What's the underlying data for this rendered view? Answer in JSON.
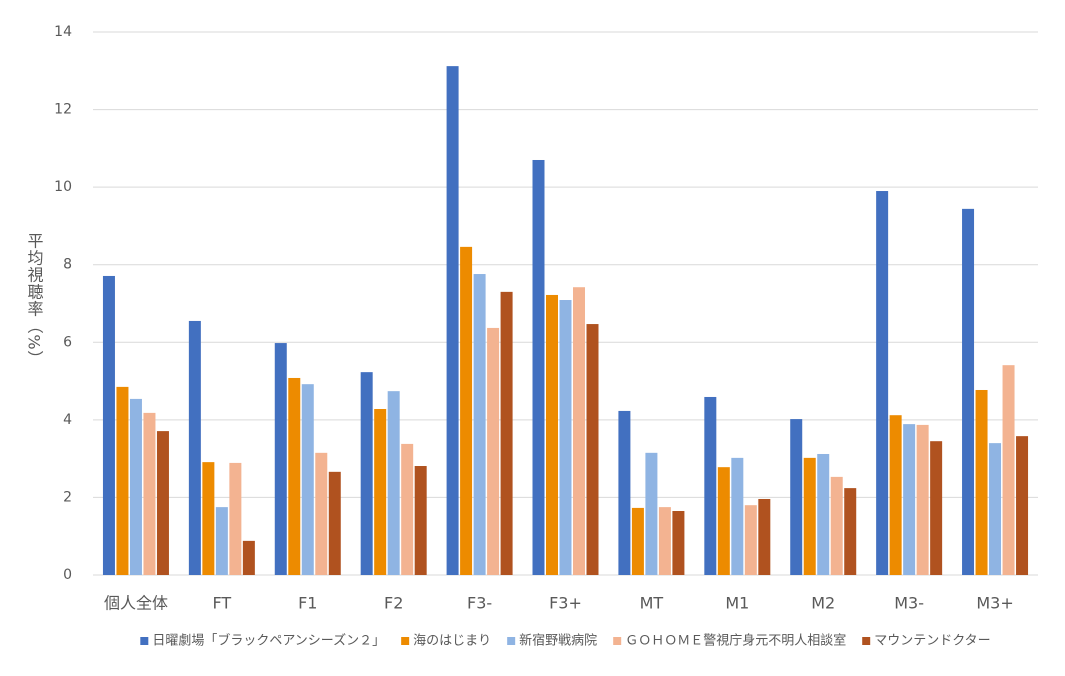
{
  "chart_data": {
    "type": "bar",
    "ylabel": "平均視聴率（%）",
    "categories": [
      "個人全体",
      "FT",
      "F1",
      "F2",
      "F3-",
      "F3+",
      "MT",
      "M1",
      "M2",
      "M3-",
      "M3+"
    ],
    "series": [
      {
        "name": "日曜劇場「ブラックペアンシーズン２」",
        "color": "#4270c0",
        "values": [
          7.71,
          6.55,
          5.98,
          5.23,
          13.12,
          10.7,
          4.23,
          4.59,
          4.02,
          9.9,
          9.44
        ]
      },
      {
        "name": "海のはじまり",
        "color": "#ed8b00",
        "values": [
          4.85,
          2.91,
          5.08,
          4.28,
          8.46,
          7.22,
          1.73,
          2.78,
          3.02,
          4.12,
          4.77
        ]
      },
      {
        "name": "新宿野戦病院",
        "color": "#8fb4e3",
        "values": [
          4.54,
          1.75,
          4.92,
          4.74,
          7.76,
          7.09,
          3.15,
          3.02,
          3.12,
          3.89,
          3.4
        ]
      },
      {
        "name": "ＧＯＨＯＭＥ警視庁身元不明人相談室",
        "color": "#f3b391",
        "values": [
          4.18,
          2.89,
          3.15,
          3.38,
          6.37,
          7.42,
          1.75,
          1.8,
          2.53,
          3.87,
          5.41
        ]
      },
      {
        "name": "マウンテンドクター",
        "color": "#b0521f",
        "values": [
          3.71,
          0.88,
          2.66,
          2.81,
          7.3,
          6.47,
          1.65,
          1.96,
          2.24,
          3.45,
          3.58
        ]
      }
    ],
    "ylim": [
      0,
      14
    ],
    "yticks": [
      0,
      2,
      4,
      6,
      8,
      10,
      12,
      14
    ],
    "grid": true,
    "legend": "bottom"
  }
}
